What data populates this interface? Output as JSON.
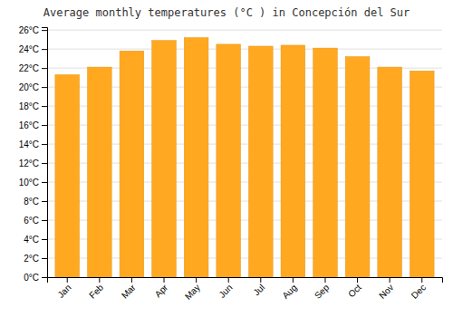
{
  "chart_data": {
    "type": "bar",
    "title": "Average monthly temperatures (°C ) in Concepción del Sur",
    "categories": [
      "Jan",
      "Feb",
      "Mar",
      "Apr",
      "May",
      "Jun",
      "Jul",
      "Aug",
      "Sep",
      "Oct",
      "Nov",
      "Dec"
    ],
    "values": [
      21.3,
      22.1,
      23.8,
      24.9,
      25.2,
      24.5,
      24.3,
      24.4,
      24.1,
      23.2,
      22.1,
      21.7
    ],
    "color": "#FFA820",
    "ylim": [
      0,
      26.3
    ],
    "yticks": [
      {
        "value": 0,
        "label": "0°C"
      },
      {
        "value": 2,
        "label": "2°C"
      },
      {
        "value": 4,
        "label": "4°C"
      },
      {
        "value": 6,
        "label": "6°C"
      },
      {
        "value": 8,
        "label": "8°C"
      },
      {
        "value": 10,
        "label": "10°C"
      },
      {
        "value": 12,
        "label": "12°C"
      },
      {
        "value": 14,
        "label": "14°C"
      },
      {
        "value": 16,
        "label": "16°C"
      },
      {
        "value": 18,
        "label": "18°C"
      },
      {
        "value": 20,
        "label": "20°C"
      },
      {
        "value": 22,
        "label": "22°C"
      },
      {
        "value": 24,
        "label": "24°C"
      },
      {
        "value": 26,
        "label": "26°C"
      }
    ],
    "grid": true
  }
}
